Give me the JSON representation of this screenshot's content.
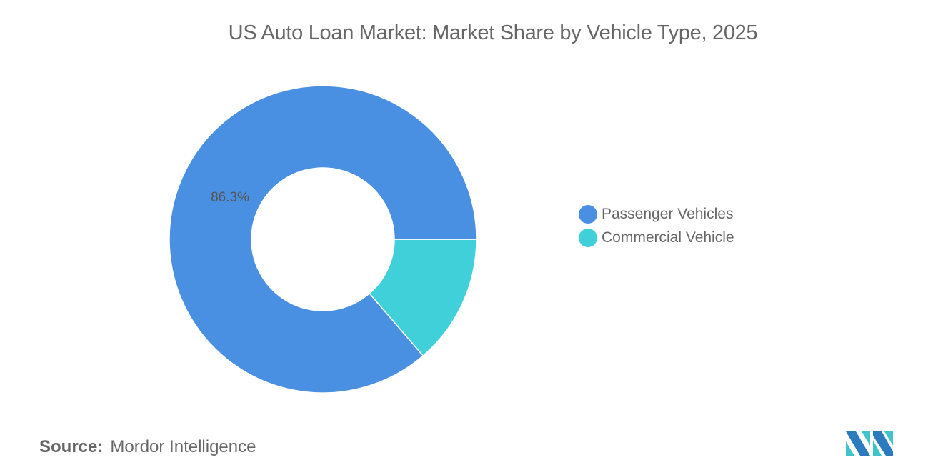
{
  "chart_data": {
    "type": "pie",
    "variant": "donut",
    "title": "US Auto Loan Market: Market Share by Vehicle Type, 2025",
    "categories": [
      "Passenger Vehicles",
      "Commercial Vehicle"
    ],
    "values": [
      86.3,
      13.7
    ],
    "unit": "%",
    "data_labels": [
      "86.3%",
      ""
    ],
    "colors": [
      "#4A90E2",
      "#40D0DA"
    ],
    "legend_position": "right"
  },
  "source": {
    "label": "Source:",
    "value": "Mordor Intelligence"
  },
  "logo": {
    "text": "Mordor Intelligence logo",
    "colors": [
      "#2B7BBF",
      "#40C4CC"
    ]
  }
}
